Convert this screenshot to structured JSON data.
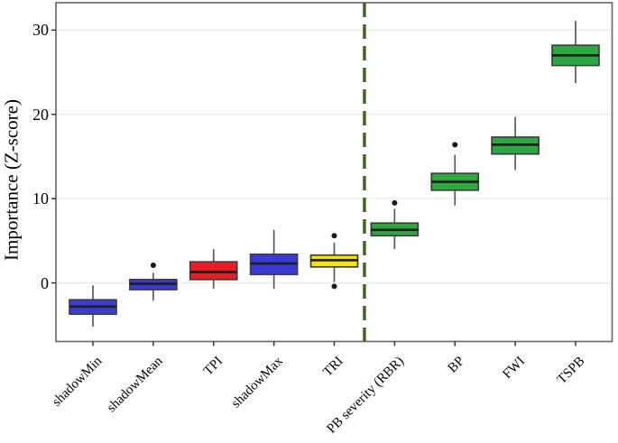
{
  "chart_data": {
    "type": "boxplot",
    "title": "",
    "xlabel": "",
    "ylabel": "Importance (Z-score)",
    "ylim": [
      -6.95,
      33.25
    ],
    "yticks": [
      0,
      10,
      20,
      30
    ],
    "grid": "horizontal-only",
    "legend": "none",
    "panel_border": true,
    "separator": {
      "type": "vertical-dashed-line",
      "after_category_index": 4,
      "between": [
        "TRI",
        "PB severity (RBR)"
      ],
      "color": "#3d641f"
    },
    "categories": [
      "shadowMin",
      "shadowMean",
      "TPI",
      "shadowMax",
      "TRI",
      "PB severity (RBR)",
      "BP",
      "FWI",
      "TSPB"
    ],
    "boxes": [
      {
        "label": "shadowMin",
        "color": "#3b3bd8",
        "whisker_low": -5.2,
        "q1": -3.7,
        "median": -2.8,
        "q3": -2.0,
        "whisker_high": -0.3,
        "outliers": []
      },
      {
        "label": "shadowMean",
        "color": "#3b3bd8",
        "whisker_low": -2.1,
        "q1": -0.8,
        "median": -0.1,
        "q3": 0.4,
        "whisker_high": 1.2,
        "outliers": [
          2.1
        ]
      },
      {
        "label": "TPI",
        "color": "#ea1c24",
        "whisker_low": -0.7,
        "q1": 0.4,
        "median": 1.3,
        "q3": 2.5,
        "whisker_high": 4.0,
        "outliers": []
      },
      {
        "label": "shadowMax",
        "color": "#3b3bd8",
        "whisker_low": -0.7,
        "q1": 1.0,
        "median": 2.3,
        "q3": 3.4,
        "whisker_high": 6.3,
        "outliers": []
      },
      {
        "label": "TRI",
        "color": "#f7e500",
        "whisker_low": 0.1,
        "q1": 1.9,
        "median": 2.7,
        "q3": 3.3,
        "whisker_high": 4.8,
        "outliers": [
          5.6,
          -0.4
        ]
      },
      {
        "label": "PB severity (RBR)",
        "color": "#2ca843",
        "whisker_low": 4.0,
        "q1": 5.6,
        "median": 6.3,
        "q3": 7.1,
        "whisker_high": 8.8,
        "outliers": [
          9.5
        ]
      },
      {
        "label": "BP",
        "color": "#2ca843",
        "whisker_low": 9.2,
        "q1": 11.0,
        "median": 12.0,
        "q3": 13.0,
        "whisker_high": 15.2,
        "outliers": [
          16.4
        ]
      },
      {
        "label": "FWI",
        "color": "#2ca843",
        "whisker_low": 13.4,
        "q1": 15.3,
        "median": 16.4,
        "q3": 17.3,
        "whisker_high": 19.7,
        "outliers": []
      },
      {
        "label": "TSPB",
        "color": "#2ca843",
        "whisker_low": 23.7,
        "q1": 25.8,
        "median": 27.0,
        "q3": 28.2,
        "whisker_high": 31.1,
        "outliers": []
      }
    ],
    "colors": {
      "grid_line": "#ededed",
      "panel_border": "#6e6e6e",
      "whisker": "#5a5a5a",
      "box_border": "#3f3f3f",
      "median_line": "#1f1f1f",
      "outlier": "#1a1a1a",
      "text": "#000000",
      "background": "#ffffff"
    }
  }
}
